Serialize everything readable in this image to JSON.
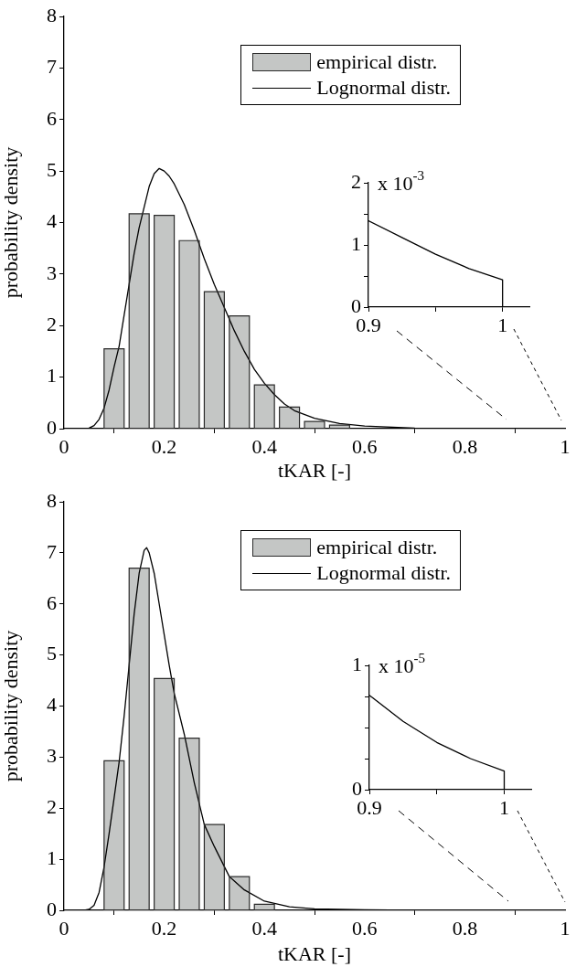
{
  "chart_data": [
    {
      "type": "histogram",
      "xlabel": "tKAR [-]",
      "ylabel": "probability density",
      "bins": [
        0.075,
        0.125,
        0.175,
        0.225,
        0.275,
        0.325,
        0.375,
        0.425,
        0.475,
        0.525,
        0.575
      ],
      "series": [
        {
          "name": "empirical distr.",
          "type": "histogram",
          "color": "#c4c6c5",
          "values": [
            1.55,
            4.17,
            4.14,
            3.65,
            2.66,
            2.19,
            0.85,
            0.42,
            0.14,
            0.07
          ]
        },
        {
          "name": "Lognormal distr.",
          "type": "line",
          "color": "#000000",
          "x": [
            0,
            0.04,
            0.05,
            0.06,
            0.07,
            0.08,
            0.09,
            0.1,
            0.11,
            0.12,
            0.13,
            0.14,
            0.15,
            0.16,
            0.17,
            0.18,
            0.19,
            0.2,
            0.21,
            0.22,
            0.24,
            0.26,
            0.28,
            0.3,
            0.32,
            0.34,
            0.36,
            0.38,
            0.4,
            0.42,
            0.44,
            0.46,
            0.5,
            0.55,
            0.6,
            0.7,
            0.8,
            1
          ],
          "values": [
            0,
            0,
            0.01,
            0.06,
            0.18,
            0.4,
            0.75,
            1.2,
            1.6,
            2.2,
            2.8,
            3.4,
            3.9,
            4.3,
            4.7,
            4.95,
            5.05,
            5.0,
            4.9,
            4.75,
            4.35,
            3.85,
            3.3,
            2.8,
            2.35,
            1.9,
            1.5,
            1.15,
            0.88,
            0.66,
            0.48,
            0.35,
            0.2,
            0.1,
            0.05,
            0.01,
            0,
            0
          ]
        }
      ],
      "xlim": [
        0,
        1
      ],
      "xticks": [
        0,
        0.2,
        0.4,
        0.6,
        0.8,
        1
      ],
      "ylim": [
        0,
        8
      ],
      "yticks": [
        0,
        1,
        2,
        3,
        4,
        5,
        6,
        7,
        8
      ],
      "legend": "top right"
    },
    {
      "type": "line",
      "x": [
        0.9,
        0.925,
        0.95,
        0.975,
        1,
        1
      ],
      "series": [
        {
          "color": "#000000",
          "values": [
            1.39,
            1.12,
            0.85,
            0.62,
            0.44,
            0
          ]
        }
      ],
      "xlim": [
        0.9,
        1.02
      ],
      "xticks": [
        0.9,
        {
          "value": 0.95,
          "label": null
        },
        1
      ],
      "ylim": [
        0,
        2
      ],
      "yticks": [
        0,
        {
          "value": 0.5,
          "label": null
        },
        1,
        {
          "value": 1.5,
          "label": null
        },
        2
      ],
      "annotations": [
        "x 10$^{-3}$"
      ]
    },
    {
      "type": "histogram",
      "xlabel": "tKAR [-]",
      "ylabel": "probability density",
      "bins": [
        0.075,
        0.125,
        0.175,
        0.225,
        0.275,
        0.325,
        0.375,
        0.425
      ],
      "series": [
        {
          "name": "empirical distr.",
          "type": "histogram",
          "color": "#c4c6c5",
          "values": [
            2.93,
            6.7,
            4.54,
            3.37,
            1.68,
            0.66,
            0.12
          ]
        },
        {
          "name": "Lognormal distr.",
          "type": "line",
          "color": "#000000",
          "x": [
            0,
            0.04,
            0.05,
            0.06,
            0.07,
            0.08,
            0.09,
            0.1,
            0.11,
            0.12,
            0.13,
            0.14,
            0.15,
            0.16,
            0.165,
            0.17,
            0.18,
            0.19,
            0.2,
            0.21,
            0.22,
            0.24,
            0.26,
            0.28,
            0.3,
            0.33,
            0.36,
            0.4,
            0.45,
            0.5,
            0.6,
            0.7,
            1
          ],
          "values": [
            0,
            0,
            0.02,
            0.1,
            0.35,
            0.85,
            1.5,
            2.2,
            2.9,
            3.8,
            4.8,
            5.8,
            6.6,
            7.05,
            7.1,
            7.0,
            6.6,
            6.0,
            5.4,
            4.8,
            4.25,
            3.45,
            2.5,
            1.68,
            1.25,
            0.66,
            0.4,
            0.18,
            0.07,
            0.03,
            0.01,
            0,
            0
          ]
        }
      ],
      "xlim": [
        0,
        1
      ],
      "xticks": [
        0,
        0.2,
        0.4,
        0.6,
        0.8,
        1
      ],
      "ylim": [
        0,
        8
      ],
      "yticks": [
        0,
        1,
        2,
        3,
        4,
        5,
        6,
        7,
        8
      ],
      "legend": "top right"
    },
    {
      "type": "line",
      "x": [
        0.9,
        0.925,
        0.95,
        0.975,
        1,
        1
      ],
      "series": [
        {
          "color": "#000000",
          "values": [
            0.76,
            0.55,
            0.38,
            0.25,
            0.15,
            0
          ]
        }
      ],
      "xlim": [
        0.9,
        1.02
      ],
      "xticks": [
        0.9,
        {
          "value": 0.95,
          "label": null
        },
        1
      ],
      "ylim": [
        0,
        1
      ],
      "yticks": [
        0,
        {
          "value": 0.25,
          "label": null
        },
        {
          "value": 0.5,
          "label": null
        },
        {
          "value": 0.75,
          "label": null
        },
        1
      ],
      "annotations": [
        "x 10$^{-5}$"
      ]
    }
  ]
}
